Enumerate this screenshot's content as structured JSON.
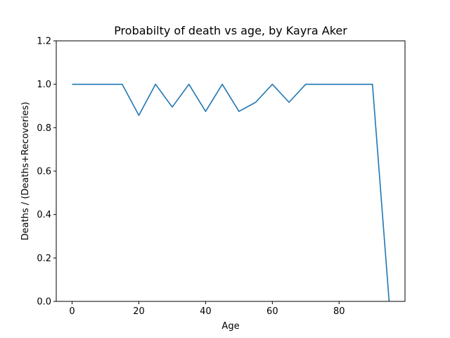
{
  "chart_data": {
    "type": "line",
    "title": "Probabilty of death vs age, by Kayra Aker",
    "xlabel": "Age",
    "ylabel": "Deaths / (Deaths+Recoveries)",
    "xlim": [
      -4.75,
      99.75
    ],
    "ylim": [
      0,
      1.2
    ],
    "xticks": [
      0,
      20,
      40,
      60,
      80
    ],
    "xtick_labels": [
      "0",
      "20",
      "40",
      "60",
      "80"
    ],
    "yticks": [
      0.0,
      0.2,
      0.4,
      0.6,
      0.8,
      1.0,
      1.2
    ],
    "ytick_labels": [
      "0.0",
      "0.2",
      "0.4",
      "0.6",
      "0.8",
      "1.0",
      "1.2"
    ],
    "grid": false,
    "series": [
      {
        "color": "#1f77b4",
        "x": [
          0,
          5,
          10,
          15,
          20,
          25,
          30,
          35,
          40,
          45,
          50,
          55,
          60,
          65,
          70,
          75,
          80,
          85,
          90,
          95
        ],
        "y": [
          1.0,
          1.0,
          1.0,
          1.0,
          0.857,
          1.0,
          0.895,
          1.0,
          0.875,
          1.0,
          0.875,
          0.917,
          1.0,
          0.917,
          1.0,
          1.0,
          1.0,
          1.0,
          1.0,
          0.0
        ]
      }
    ]
  }
}
